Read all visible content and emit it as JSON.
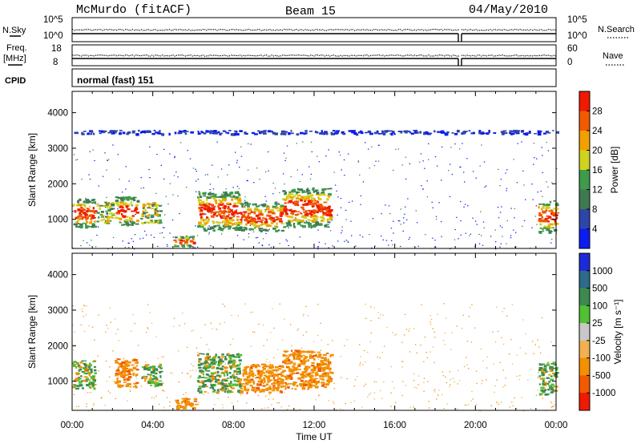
{
  "header": {
    "station": "McMurdo (fitACF)",
    "beam": "Beam 15",
    "date": "04/May/2010"
  },
  "top_panels": {
    "nsky_label": "N.Sky",
    "nsky_ticks": [
      "10^5",
      "10^0"
    ],
    "nsearch_label": "N.Search",
    "nsearch_ticks": [
      "10^5",
      "10^0"
    ],
    "freq_label": "Freq.",
    "freq_unit": "[MHz]",
    "freq_ticks": [
      "18",
      "8"
    ],
    "nave_label": "Nave",
    "nave_ticks": [
      "60",
      "0"
    ],
    "cpid_label": "CPID",
    "cpid_value": "normal (fast) 151"
  },
  "colors": {
    "power_scale": [
      "#0b1cf0",
      "#2e46a8",
      "#3d7a52",
      "#3f9a4a",
      "#cfd21e",
      "#f2a000",
      "#f05a00",
      "#f01a00"
    ],
    "velocity_scale": [
      "#f01a00",
      "#f05a00",
      "#f29000",
      "#f2b050",
      "#c8c8c8",
      "#4fc232",
      "#3d8a4f",
      "#2d6a8c",
      "#1e2ad8"
    ]
  },
  "chart_data": [
    {
      "type": "heatmap",
      "title": "Power",
      "ylabel": "Slant Range [km]",
      "xlabel": "",
      "ylim": [
        180,
        4600
      ],
      "xlim": [
        0,
        24
      ],
      "yticks": [
        "1000",
        "2000",
        "3000",
        "4000"
      ],
      "xticks": [],
      "colorbar": {
        "label": "Power [dB]",
        "ticks": [
          "28",
          "24",
          "20",
          "16",
          "12",
          "8",
          "4"
        ]
      },
      "regions": [
        {
          "x": [
            0.0,
            1.1
          ],
          "y": [
            800,
            1600
          ],
          "level": "high"
        },
        {
          "x": [
            1.2,
            2.0
          ],
          "y": [
            900,
            1500
          ],
          "level": "mid"
        },
        {
          "x": [
            2.1,
            3.2
          ],
          "y": [
            850,
            1650
          ],
          "level": "high"
        },
        {
          "x": [
            3.4,
            4.4
          ],
          "y": [
            900,
            1500
          ],
          "level": "mid"
        },
        {
          "x": [
            5.0,
            6.1
          ],
          "y": [
            250,
            550
          ],
          "level": "high"
        },
        {
          "x": [
            6.2,
            8.3
          ],
          "y": [
            700,
            1800
          ],
          "level": "high"
        },
        {
          "x": [
            8.3,
            10.4
          ],
          "y": [
            700,
            1500
          ],
          "level": "high"
        },
        {
          "x": [
            10.4,
            12.8
          ],
          "y": [
            800,
            1900
          ],
          "level": "high"
        },
        {
          "x": [
            23.1,
            24.0
          ],
          "y": [
            650,
            1550
          ],
          "level": "high"
        },
        {
          "x": [
            0.0,
            24.0
          ],
          "y": [
            3420,
            3520
          ],
          "level": "low"
        }
      ]
    },
    {
      "type": "heatmap",
      "title": "Velocity",
      "ylabel": "Slant Range [km]",
      "xlabel": "Time UT",
      "ylim": [
        180,
        4600
      ],
      "xlim": [
        0,
        24
      ],
      "yticks": [
        "1000",
        "2000",
        "3000",
        "4000"
      ],
      "xticks": [
        "00:00",
        "04:00",
        "08:00",
        "12:00",
        "16:00",
        "20:00",
        "00:00"
      ],
      "colorbar": {
        "label": "Velocity [m s⁻¹]",
        "ticks": [
          "1000",
          "500",
          "100",
          "25",
          "-25",
          "-100",
          "-500",
          "-1000"
        ]
      },
      "regions": [
        {
          "x": [
            0.0,
            1.1
          ],
          "y": [
            800,
            1600
          ],
          "level": "mixed"
        },
        {
          "x": [
            2.1,
            3.2
          ],
          "y": [
            850,
            1650
          ],
          "level": "away"
        },
        {
          "x": [
            3.4,
            4.4
          ],
          "y": [
            900,
            1500
          ],
          "level": "mixed"
        },
        {
          "x": [
            5.0,
            6.1
          ],
          "y": [
            250,
            550
          ],
          "level": "away"
        },
        {
          "x": [
            6.2,
            8.3
          ],
          "y": [
            700,
            1800
          ],
          "level": "mixed"
        },
        {
          "x": [
            8.3,
            10.4
          ],
          "y": [
            700,
            1500
          ],
          "level": "away"
        },
        {
          "x": [
            10.4,
            12.8
          ],
          "y": [
            800,
            1900
          ],
          "level": "away"
        },
        {
          "x": [
            23.1,
            24.0
          ],
          "y": [
            650,
            1550
          ],
          "level": "mixed"
        }
      ]
    }
  ]
}
